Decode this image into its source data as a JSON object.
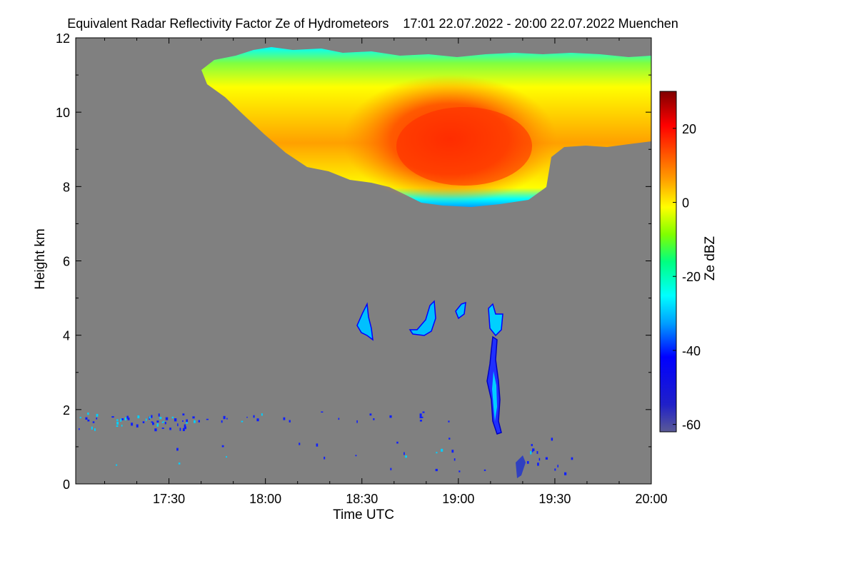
{
  "chart_data": {
    "type": "heatmap",
    "title": "Equivalent Radar Reflectivity Factor Ze of Hydrometeors    17:01 22.07.2022 - 20:00 22.07.2022 Muenchen",
    "xlabel": "Time UTC",
    "ylabel": "Height km",
    "colorbar_label": "Ze dBZ",
    "x_range_minutes_utc": [
      1021,
      1200
    ],
    "x_ticks": [
      {
        "label": "17:30",
        "minutes": 1050
      },
      {
        "label": "18:00",
        "minutes": 1080
      },
      {
        "label": "18:30",
        "minutes": 1110
      },
      {
        "label": "19:00",
        "minutes": 1140
      },
      {
        "label": "19:30",
        "minutes": 1170
      },
      {
        "label": "20:00",
        "minutes": 1200
      }
    ],
    "ylim": [
      0,
      12
    ],
    "y_ticks": [
      0,
      2,
      4,
      6,
      8,
      10,
      12
    ],
    "colorbar_range": [
      -62,
      30
    ],
    "colorbar_ticks": [
      20,
      0,
      -20,
      -40,
      -60
    ],
    "background_color": "#808080",
    "colormap": [
      "#5a5a96",
      "#0000ff",
      "#00a0ff",
      "#00ffff",
      "#00ff80",
      "#80ff00",
      "#ffff00",
      "#ffa000",
      "#ff5000",
      "#ff0000",
      "#a00000",
      "#800000"
    ],
    "features": [
      {
        "name": "upper ice cloud",
        "time_start": "17:42",
        "time_end": "20:00",
        "top_km": 11.9,
        "base_km": 7.5,
        "peak_dbz": 15
      },
      {
        "name": "mid-level echoes",
        "time_start": "18:28",
        "time_end": "19:10",
        "base_km": 3.9,
        "top_km": 5.0,
        "dbz": -30
      },
      {
        "name": "fall streak",
        "time_start": "19:07",
        "time_end": "19:14",
        "base_km": 1.2,
        "top_km": 4.8,
        "dbz": -45
      },
      {
        "name": "boundary layer clutter",
        "time_start": "17:01",
        "time_end": "19:40",
        "base_km": 0,
        "top_km": 2.0,
        "dbz": -45
      }
    ]
  }
}
